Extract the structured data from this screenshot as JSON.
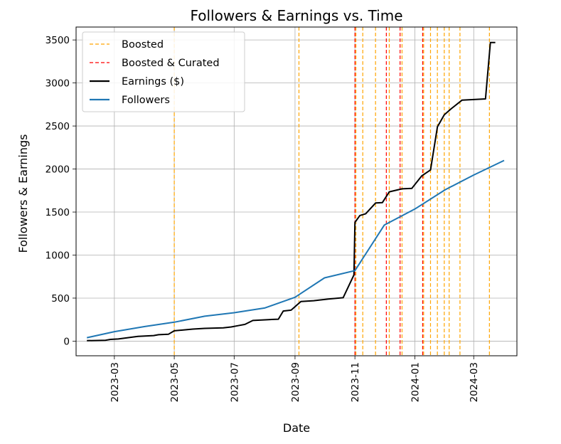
{
  "chart_data": {
    "type": "line",
    "title": "Followers & Earnings vs. Time",
    "xlabel": "Date",
    "ylabel": "Followers & Earnings",
    "xlim": [
      "2023-01-21",
      "2024-04-14"
    ],
    "ylim": [
      -170,
      3650
    ],
    "grid": true,
    "legend_position": "top-left",
    "x_ticks": [
      {
        "date": "2023-03-01",
        "label": "2023-03"
      },
      {
        "date": "2023-05-01",
        "label": "2023-05"
      },
      {
        "date": "2023-07-01",
        "label": "2023-07"
      },
      {
        "date": "2023-09-01",
        "label": "2023-09"
      },
      {
        "date": "2023-11-01",
        "label": "2023-11"
      },
      {
        "date": "2024-01-01",
        "label": "2024-01"
      },
      {
        "date": "2024-03-01",
        "label": "2024-03"
      }
    ],
    "y_ticks": [
      0,
      500,
      1000,
      1500,
      2000,
      2500,
      3000,
      3500
    ],
    "legend": [
      {
        "label": "Boosted",
        "style": "dashed",
        "color": "#ffa500"
      },
      {
        "label": "Boosted & Curated",
        "style": "dashed",
        "color": "#ff0000"
      },
      {
        "label": "Earnings ($)",
        "style": "solid",
        "color": "#000000"
      },
      {
        "label": "Followers",
        "style": "solid",
        "color": "#1f77b4"
      }
    ],
    "boosted_dates": [
      "2023-05-01",
      "2023-09-05",
      "2023-11-02",
      "2023-11-09",
      "2023-11-22",
      "2023-12-06",
      "2023-12-19",
      "2024-01-10",
      "2024-01-17",
      "2024-01-24",
      "2024-01-31",
      "2024-02-05",
      "2024-02-16",
      "2024-03-17"
    ],
    "boosted_curated_dates": [
      "2023-11-01",
      "2023-12-03",
      "2023-12-17",
      "2024-01-09"
    ],
    "series": [
      {
        "name": "Earnings ($)",
        "color": "#000000",
        "points": [
          [
            "2023-02-01",
            5
          ],
          [
            "2023-02-20",
            10
          ],
          [
            "2023-02-25",
            20
          ],
          [
            "2023-03-05",
            25
          ],
          [
            "2023-03-25",
            55
          ],
          [
            "2023-04-10",
            65
          ],
          [
            "2023-04-15",
            75
          ],
          [
            "2023-04-25",
            80
          ],
          [
            "2023-05-01",
            120
          ],
          [
            "2023-05-20",
            140
          ],
          [
            "2023-06-01",
            148
          ],
          [
            "2023-06-20",
            155
          ],
          [
            "2023-06-28",
            165
          ],
          [
            "2023-07-05",
            180
          ],
          [
            "2023-07-12",
            195
          ],
          [
            "2023-07-20",
            240
          ],
          [
            "2023-08-05",
            250
          ],
          [
            "2023-08-15",
            255
          ],
          [
            "2023-08-20",
            350
          ],
          [
            "2023-08-28",
            360
          ],
          [
            "2023-09-07",
            460
          ],
          [
            "2023-09-20",
            470
          ],
          [
            "2023-10-05",
            490
          ],
          [
            "2023-10-15",
            500
          ],
          [
            "2023-10-20",
            505
          ],
          [
            "2023-10-31",
            770
          ],
          [
            "2023-11-01",
            1380
          ],
          [
            "2023-11-06",
            1460
          ],
          [
            "2023-11-12",
            1480
          ],
          [
            "2023-11-22",
            1605
          ],
          [
            "2023-11-29",
            1610
          ],
          [
            "2023-12-06",
            1735
          ],
          [
            "2023-12-19",
            1770
          ],
          [
            "2023-12-29",
            1775
          ],
          [
            "2024-01-08",
            1920
          ],
          [
            "2024-01-17",
            1990
          ],
          [
            "2024-01-24",
            2490
          ],
          [
            "2024-01-31",
            2630
          ],
          [
            "2024-02-07",
            2700
          ],
          [
            "2024-02-18",
            2800
          ],
          [
            "2024-03-13",
            2815
          ],
          [
            "2024-03-18",
            3470
          ],
          [
            "2024-03-23",
            3470
          ]
        ]
      },
      {
        "name": "Followers",
        "color": "#1f77b4",
        "points": [
          [
            "2023-02-01",
            40
          ],
          [
            "2023-03-01",
            110
          ],
          [
            "2023-04-01",
            170
          ],
          [
            "2023-05-01",
            220
          ],
          [
            "2023-06-01",
            290
          ],
          [
            "2023-07-01",
            330
          ],
          [
            "2023-08-01",
            385
          ],
          [
            "2023-09-01",
            510
          ],
          [
            "2023-10-01",
            735
          ],
          [
            "2023-11-01",
            820
          ],
          [
            "2023-12-01",
            1350
          ],
          [
            "2024-01-01",
            1535
          ],
          [
            "2024-02-01",
            1760
          ],
          [
            "2024-03-01",
            1930
          ],
          [
            "2024-04-01",
            2100
          ]
        ]
      }
    ]
  }
}
